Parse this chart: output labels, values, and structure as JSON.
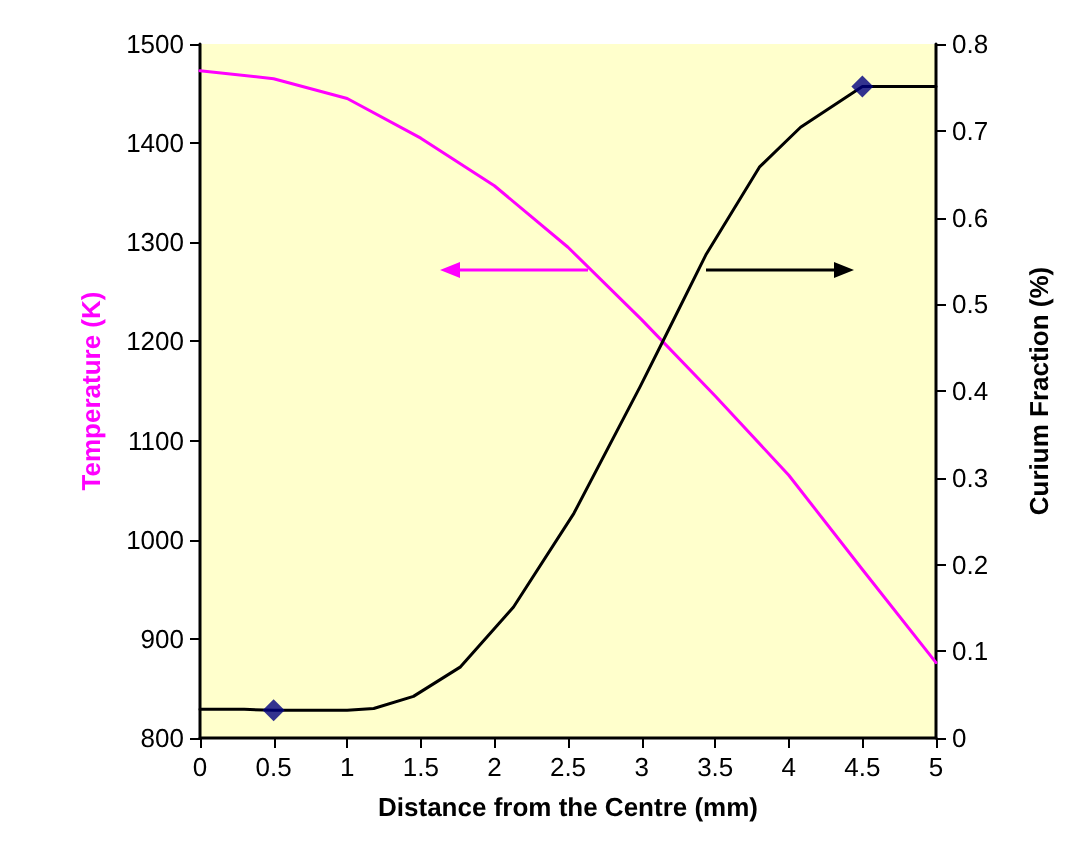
{
  "chart_data": {
    "type": "line",
    "xlabel": "Distance from the Centre (mm)",
    "ylabel": "Temperature (K)",
    "y2label": "Curium Fraction (%)",
    "xlim": [
      0,
      5
    ],
    "xticks": [
      0,
      0.5,
      1,
      1.5,
      2,
      2.5,
      3,
      3.5,
      4,
      4.5,
      5
    ],
    "ylim": [
      800,
      1500
    ],
    "yticks": [
      800,
      900,
      1000,
      1100,
      1200,
      1300,
      1400,
      1500
    ],
    "y2lim": [
      0,
      0.8
    ],
    "y2ticks": [
      0,
      0.1,
      0.2,
      0.3,
      0.4,
      0.5,
      0.6,
      0.7,
      0.8
    ],
    "grid": false,
    "series": [
      {
        "color": "#ff00ff",
        "marker": "none",
        "x": [
          0,
          0.5,
          1,
          1.5,
          2,
          2.5,
          3,
          3.5,
          4,
          4.5,
          5
        ],
        "values": [
          1473,
          1465,
          1445,
          1405,
          1357,
          1295,
          1222,
          1145,
          1065,
          970,
          876
        ]
      },
      {
        "axis": "y2",
        "color": "#000000",
        "marker": "none",
        "x": [
          0,
          0.3,
          0.5,
          1,
          1.18,
          1.45,
          1.77,
          2.13,
          2.54,
          2.99,
          3.17,
          3.44,
          3.8,
          4.08,
          4.5,
          5
        ],
        "values": [
          0.033,
          0.033,
          0.032,
          0.032,
          0.034,
          0.048,
          0.082,
          0.151,
          0.259,
          0.405,
          0.466,
          0.558,
          0.658,
          0.704,
          0.751,
          0.751
        ]
      },
      {
        "type": "scatter",
        "axis": "y2",
        "color": "#000080",
        "marker": "diamond",
        "x": [
          0.5,
          4.5
        ],
        "values": [
          0.032,
          0.751
        ]
      }
    ]
  }
}
